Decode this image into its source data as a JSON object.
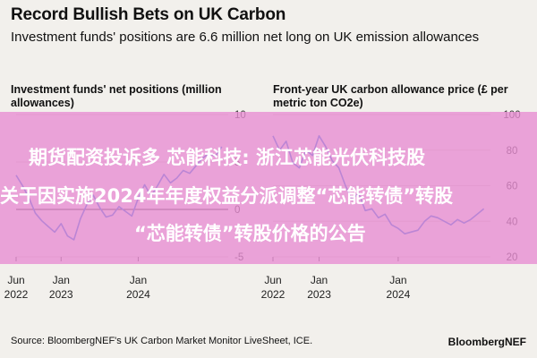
{
  "header": {
    "title": "Record Bullish Bets on UK Carbon",
    "subtitle": "Investment funds' positions are 6.6 million net long on UK emission allowances"
  },
  "banner": {
    "line1": "期货配资投诉多 芯能科技: 浙江芯能光伏科技股",
    "line2": "关于因实施2024年年度权益分派调整“芯能转债”转股",
    "line3": "“芯能转债”转股价格的公告",
    "color": "#e88cd2"
  },
  "footer": {
    "source": "Source: BloombergNEF's UK Carbon Market Monitor LiveSheet, ICE.",
    "brand": "BloombergNEF"
  },
  "chart_data": [
    {
      "type": "line",
      "title": "Investment funds' net positions (million allowances)",
      "ylim": [
        -5,
        10
      ],
      "yticks": [
        -5,
        0,
        5,
        10
      ],
      "ytick_labels": [
        "-5",
        "0",
        "5",
        "10"
      ],
      "xlim": [
        "2022-06",
        "2025-03"
      ],
      "xticks": [
        {
          "date": "2022-06",
          "label1": "Jun",
          "label2": "2022"
        },
        {
          "date": "2023-01",
          "label1": "Jan",
          "label2": "2023"
        },
        {
          "date": "2024-01",
          "label1": "Jan",
          "label2": "2024"
        }
      ],
      "line_color": "#1f6fe0",
      "zero_line": true,
      "series": [
        {
          "values": [
            [
              "2022-06",
              3.6
            ],
            [
              "2022-07",
              2.5
            ],
            [
              "2022-08",
              1.2
            ],
            [
              "2022-09",
              -0.4
            ],
            [
              "2022-10",
              -1.2
            ],
            [
              "2022-11",
              -1.8
            ],
            [
              "2022-12",
              -2.4
            ],
            [
              "2023-01",
              -1.5
            ],
            [
              "2023-02",
              -2.8
            ],
            [
              "2023-03",
              -3.2
            ],
            [
              "2023-04",
              -1.0
            ],
            [
              "2023-05",
              0.5
            ],
            [
              "2023-06",
              1.5
            ],
            [
              "2023-07",
              0.2
            ],
            [
              "2023-08",
              -0.8
            ],
            [
              "2023-09",
              -0.6
            ],
            [
              "2023-10",
              0.3
            ],
            [
              "2023-11",
              -0.2
            ],
            [
              "2023-12",
              -0.7
            ],
            [
              "2024-01",
              1.2
            ],
            [
              "2024-02",
              2.6
            ],
            [
              "2024-03",
              1.4
            ],
            [
              "2024-04",
              2.5
            ],
            [
              "2024-05",
              3.7
            ],
            [
              "2024-06",
              2.8
            ],
            [
              "2024-07",
              3.3
            ],
            [
              "2024-08",
              4.1
            ],
            [
              "2024-09",
              3.8
            ],
            [
              "2024-10",
              4.6
            ],
            [
              "2024-11",
              5.4
            ],
            [
              "2024-12",
              5.9
            ],
            [
              "2025-01",
              5.6
            ],
            [
              "2025-02",
              6.6
            ]
          ]
        }
      ]
    },
    {
      "type": "line",
      "title": "Front-year UK carbon allowance price (£ per metric ton CO2e)",
      "ylim": [
        20,
        100
      ],
      "yticks": [
        20,
        40,
        60,
        80,
        100
      ],
      "ytick_labels": [
        "20",
        "40",
        "60",
        "80",
        "100"
      ],
      "xlim": [
        "2022-06",
        "2025-03"
      ],
      "xticks": [
        {
          "date": "2022-06",
          "label1": "Jun",
          "label2": "2022"
        },
        {
          "date": "2023-01",
          "label1": "Jan",
          "label2": "2023"
        },
        {
          "date": "2024-01",
          "label1": "Jan",
          "label2": "2024"
        }
      ],
      "line_color": "#1f6fe0",
      "series": [
        {
          "values": [
            [
              "2022-06",
              88
            ],
            [
              "2022-07",
              80
            ],
            [
              "2022-08",
              85
            ],
            [
              "2022-09",
              73
            ],
            [
              "2022-10",
              70
            ],
            [
              "2022-11",
              80
            ],
            [
              "2022-12",
              77
            ],
            [
              "2023-01",
              88
            ],
            [
              "2023-02",
              82
            ],
            [
              "2023-03",
              74
            ],
            [
              "2023-04",
              70
            ],
            [
              "2023-05",
              60
            ],
            [
              "2023-06",
              52
            ],
            [
              "2023-07",
              56
            ],
            [
              "2023-08",
              46
            ],
            [
              "2023-09",
              47
            ],
            [
              "2023-10",
              42
            ],
            [
              "2023-11",
              44
            ],
            [
              "2023-12",
              38
            ],
            [
              "2024-01",
              36
            ],
            [
              "2024-02",
              33
            ],
            [
              "2024-03",
              34
            ],
            [
              "2024-04",
              35
            ],
            [
              "2024-05",
              40
            ],
            [
              "2024-06",
              43
            ],
            [
              "2024-07",
              42
            ],
            [
              "2024-08",
              40
            ],
            [
              "2024-09",
              38
            ],
            [
              "2024-10",
              41
            ],
            [
              "2024-11",
              39
            ],
            [
              "2024-12",
              41
            ],
            [
              "2025-01",
              44
            ],
            [
              "2025-02",
              47
            ]
          ]
        }
      ]
    }
  ]
}
